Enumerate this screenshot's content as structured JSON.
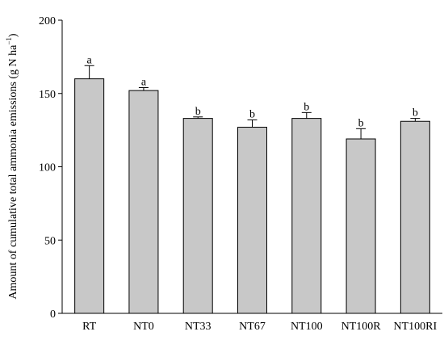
{
  "chart_data": {
    "type": "bar",
    "ylabel": {
      "text": "Amount of cumulative total ammonia emissions (g N ha",
      "superscript": "−1",
      "suffix": ")"
    },
    "categories": [
      "RT",
      "NT0",
      "NT33",
      "NT67",
      "NT100",
      "NT100R",
      "NT100RI"
    ],
    "values": [
      160,
      152,
      133,
      127,
      133,
      119,
      131
    ],
    "errors": [
      9,
      2,
      1,
      5,
      4,
      7,
      2
    ],
    "annotations": [
      "a",
      "a",
      "b",
      "b",
      "b",
      "b",
      "b"
    ],
    "color": "#c8c8c8",
    "ylim": [
      0,
      200
    ],
    "yticks": [
      0,
      50,
      100,
      150,
      200
    ]
  }
}
